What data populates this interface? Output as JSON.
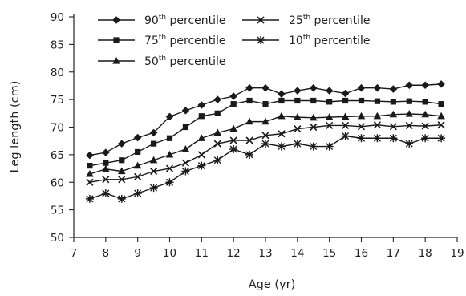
{
  "chart_data": {
    "type": "line",
    "xlabel": "Age (yr)",
    "ylabel": "Leg length (cm)",
    "xlim": [
      7,
      19
    ],
    "ylim": [
      50,
      90
    ],
    "xticks": [
      7,
      8,
      9,
      10,
      11,
      12,
      13,
      14,
      15,
      16,
      17,
      18,
      19
    ],
    "yticks": [
      50,
      55,
      60,
      65,
      70,
      75,
      80,
      85,
      90
    ],
    "grid": false,
    "legend_placement": "top-left",
    "x": [
      7.5,
      8,
      8.5,
      9,
      9.5,
      10,
      10.5,
      11,
      11.5,
      12,
      12.5,
      13,
      13.5,
      14,
      14.5,
      15,
      15.5,
      16,
      16.5,
      17,
      17.5,
      18,
      18.5
    ],
    "series": [
      {
        "name": "90th percentile",
        "name_base": "90",
        "name_sup": "th",
        "name_rest": " percentile",
        "marker": "diamond",
        "values": [
          64.9,
          65.4,
          67.0,
          68.1,
          69.0,
          71.9,
          73.0,
          74.0,
          75.0,
          75.6,
          77.1,
          77.1,
          76.0,
          76.6,
          77.1,
          76.6,
          76.1,
          77.1,
          77.1,
          76.9,
          77.6,
          77.6,
          77.8
        ]
      },
      {
        "name": "75th percentile",
        "name_base": "75",
        "name_sup": "th",
        "name_rest": " percentile",
        "marker": "square",
        "values": [
          63.0,
          63.5,
          64.0,
          65.5,
          67.0,
          68.0,
          70.0,
          72.0,
          72.5,
          74.2,
          74.8,
          74.2,
          74.8,
          74.8,
          74.8,
          74.6,
          74.8,
          74.8,
          74.7,
          74.6,
          74.7,
          74.6,
          74.2
        ]
      },
      {
        "name": "50th percentile",
        "name_base": "50",
        "name_sup": "th",
        "name_rest": " percentile",
        "marker": "triangle",
        "values": [
          61.5,
          62.4,
          62.0,
          63.0,
          64.0,
          65.0,
          66.0,
          68.0,
          69.0,
          69.7,
          71.0,
          71.0,
          72.0,
          71.8,
          71.7,
          71.8,
          71.9,
          72.0,
          72.0,
          72.3,
          72.4,
          72.3,
          72.0
        ]
      },
      {
        "name": "25th percentile",
        "name_base": "25",
        "name_sup": "th",
        "name_rest": " percentile",
        "marker": "x",
        "values": [
          60.0,
          60.5,
          60.5,
          61.0,
          62.0,
          62.5,
          63.5,
          65.0,
          67.0,
          67.6,
          67.6,
          68.5,
          68.8,
          69.7,
          70.0,
          70.3,
          70.3,
          70.1,
          70.4,
          70.1,
          70.3,
          70.2,
          70.4
        ]
      },
      {
        "name": "10th percentile",
        "name_base": "10",
        "name_sup": "th",
        "name_rest": " percentile",
        "marker": "asterisk",
        "values": [
          57.0,
          58.0,
          57.0,
          58.0,
          59.0,
          60.0,
          62.0,
          63.0,
          64.0,
          66.0,
          65.0,
          67.0,
          66.5,
          67.0,
          66.5,
          66.5,
          68.4,
          68.0,
          68.0,
          68.0,
          67.0,
          68.0,
          68.0
        ]
      }
    ],
    "colors": {
      "line": "#1a1a1a",
      "axis": "#222222",
      "background": "#ffffff"
    }
  }
}
